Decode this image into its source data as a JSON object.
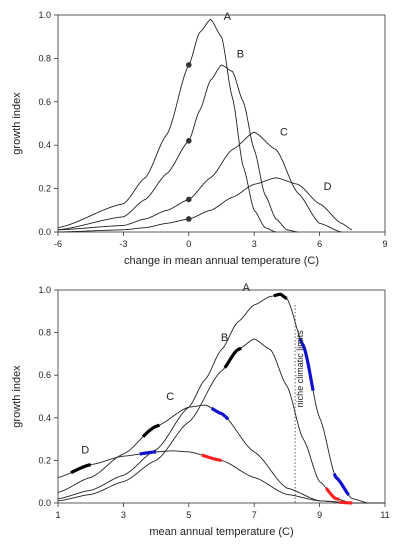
{
  "chart_data": [
    {
      "type": "line",
      "xlabel": "change in mean annual temperature (C)",
      "ylabel": "growth index",
      "xlim": [
        -6,
        9
      ],
      "ylim": [
        0,
        1.0
      ],
      "xticks": [
        "-6",
        "-3",
        "0",
        "3",
        "6",
        "9"
      ],
      "yticks": [
        "0.0",
        "0.2",
        "0.4",
        "0.6",
        "0.8",
        "1.0"
      ],
      "series": [
        {
          "name": "A",
          "x": [
            -6,
            -3,
            -2,
            -1,
            0,
            0.5,
            1,
            1.5,
            2,
            2.5,
            3,
            3.5,
            4
          ],
          "y": [
            0.02,
            0.13,
            0.25,
            0.45,
            0.77,
            0.92,
            0.98,
            0.9,
            0.62,
            0.3,
            0.1,
            0.02,
            0.0
          ]
        },
        {
          "name": "B",
          "x": [
            -6,
            -3,
            -2,
            -1,
            0,
            0.5,
            1,
            1.5,
            2,
            2.5,
            3,
            3.5,
            4,
            4.5,
            5
          ],
          "y": [
            0.01,
            0.07,
            0.15,
            0.27,
            0.42,
            0.56,
            0.7,
            0.77,
            0.74,
            0.6,
            0.38,
            0.17,
            0.06,
            0.01,
            0.0
          ]
        },
        {
          "name": "C",
          "x": [
            -6,
            -3,
            -2,
            -1,
            0,
            1,
            2,
            3,
            4,
            5,
            6,
            7
          ],
          "y": [
            0.01,
            0.03,
            0.06,
            0.1,
            0.15,
            0.25,
            0.38,
            0.46,
            0.38,
            0.18,
            0.04,
            0.0
          ]
        },
        {
          "name": "D",
          "x": [
            -6,
            -3,
            -2,
            -1,
            0,
            1,
            2,
            3,
            4,
            5,
            6,
            7,
            7.5
          ],
          "y": [
            0.0,
            0.01,
            0.02,
            0.04,
            0.06,
            0.1,
            0.16,
            0.22,
            0.25,
            0.22,
            0.13,
            0.04,
            0.01
          ]
        }
      ],
      "points": [
        {
          "series": "A",
          "x": 0,
          "y": 0.77
        },
        {
          "series": "B",
          "x": 0,
          "y": 0.42
        },
        {
          "series": "C",
          "x": 0,
          "y": 0.15
        },
        {
          "series": "D",
          "x": 0,
          "y": 0.06
        }
      ]
    },
    {
      "type": "line",
      "xlabel": "mean annual temperature (C)",
      "ylabel": "growth index",
      "xlim": [
        1,
        11
      ],
      "ylim": [
        0,
        1.0
      ],
      "xticks": [
        "1",
        "3",
        "5",
        "7",
        "9",
        "11"
      ],
      "yticks": [
        "0.0",
        "0.2",
        "0.4",
        "0.6",
        "0.8",
        "1.0"
      ],
      "series": [
        {
          "name": "A",
          "x": [
            1,
            2,
            3,
            4,
            5,
            5.5,
            6,
            6.5,
            7,
            7.5,
            7.8,
            8,
            8.5,
            9,
            9.5,
            10,
            10.5,
            11
          ],
          "y": [
            0.02,
            0.06,
            0.13,
            0.25,
            0.45,
            0.58,
            0.72,
            0.85,
            0.93,
            0.97,
            0.98,
            0.96,
            0.74,
            0.4,
            0.12,
            0.02,
            0.0,
            0.0
          ]
        },
        {
          "name": "B",
          "x": [
            1,
            2,
            3,
            4,
            5,
            6,
            6.5,
            7,
            7.5,
            8,
            8.5,
            9,
            9.5,
            10,
            10.5
          ],
          "y": [
            0.01,
            0.04,
            0.1,
            0.2,
            0.38,
            0.62,
            0.72,
            0.77,
            0.72,
            0.55,
            0.3,
            0.1,
            0.02,
            0.0,
            0.0
          ]
        },
        {
          "name": "C",
          "x": [
            1,
            2,
            3,
            4,
            5,
            5.5,
            6,
            7,
            8,
            9,
            10
          ],
          "y": [
            0.05,
            0.12,
            0.23,
            0.36,
            0.45,
            0.46,
            0.42,
            0.24,
            0.07,
            0.01,
            0.0
          ]
        },
        {
          "name": "D",
          "x": [
            1,
            2,
            3,
            4,
            4.5,
            5,
            6,
            7,
            8,
            9,
            10
          ],
          "y": [
            0.12,
            0.18,
            0.22,
            0.24,
            0.245,
            0.24,
            0.2,
            0.12,
            0.04,
            0.01,
            0.0
          ]
        }
      ],
      "highlights": [
        {
          "series": "A",
          "color": "#000000",
          "x_from": 7.6,
          "x_to": 8.0
        },
        {
          "series": "A",
          "color": "#1010d0",
          "x_from": 8.4,
          "x_to": 8.8
        },
        {
          "series": "A",
          "color": "#1010d0",
          "x_from": 9.45,
          "x_to": 9.9
        },
        {
          "series": "B",
          "color": "#000000",
          "x_from": 6.1,
          "x_to": 6.6
        },
        {
          "series": "B",
          "color": "#ff2020",
          "x_from": 9.2,
          "x_to": 9.6
        },
        {
          "series": "C",
          "color": "#000000",
          "x_from": 3.6,
          "x_to": 4.1
        },
        {
          "series": "C",
          "color": "#1010d0",
          "x_from": 5.7,
          "x_to": 6.2
        },
        {
          "series": "C",
          "color": "#ff2020",
          "x_from": 9.6,
          "x_to": 10.0
        },
        {
          "series": "D",
          "color": "#000000",
          "x_from": 1.4,
          "x_to": 2.0
        },
        {
          "series": "D",
          "color": "#1010d0",
          "x_from": 3.5,
          "x_to": 4.0
        },
        {
          "series": "D",
          "color": "#ff2020",
          "x_from": 5.4,
          "x_to": 6.0
        }
      ],
      "annotation": {
        "text": "niche climatic limits",
        "x": 8.25
      }
    }
  ]
}
